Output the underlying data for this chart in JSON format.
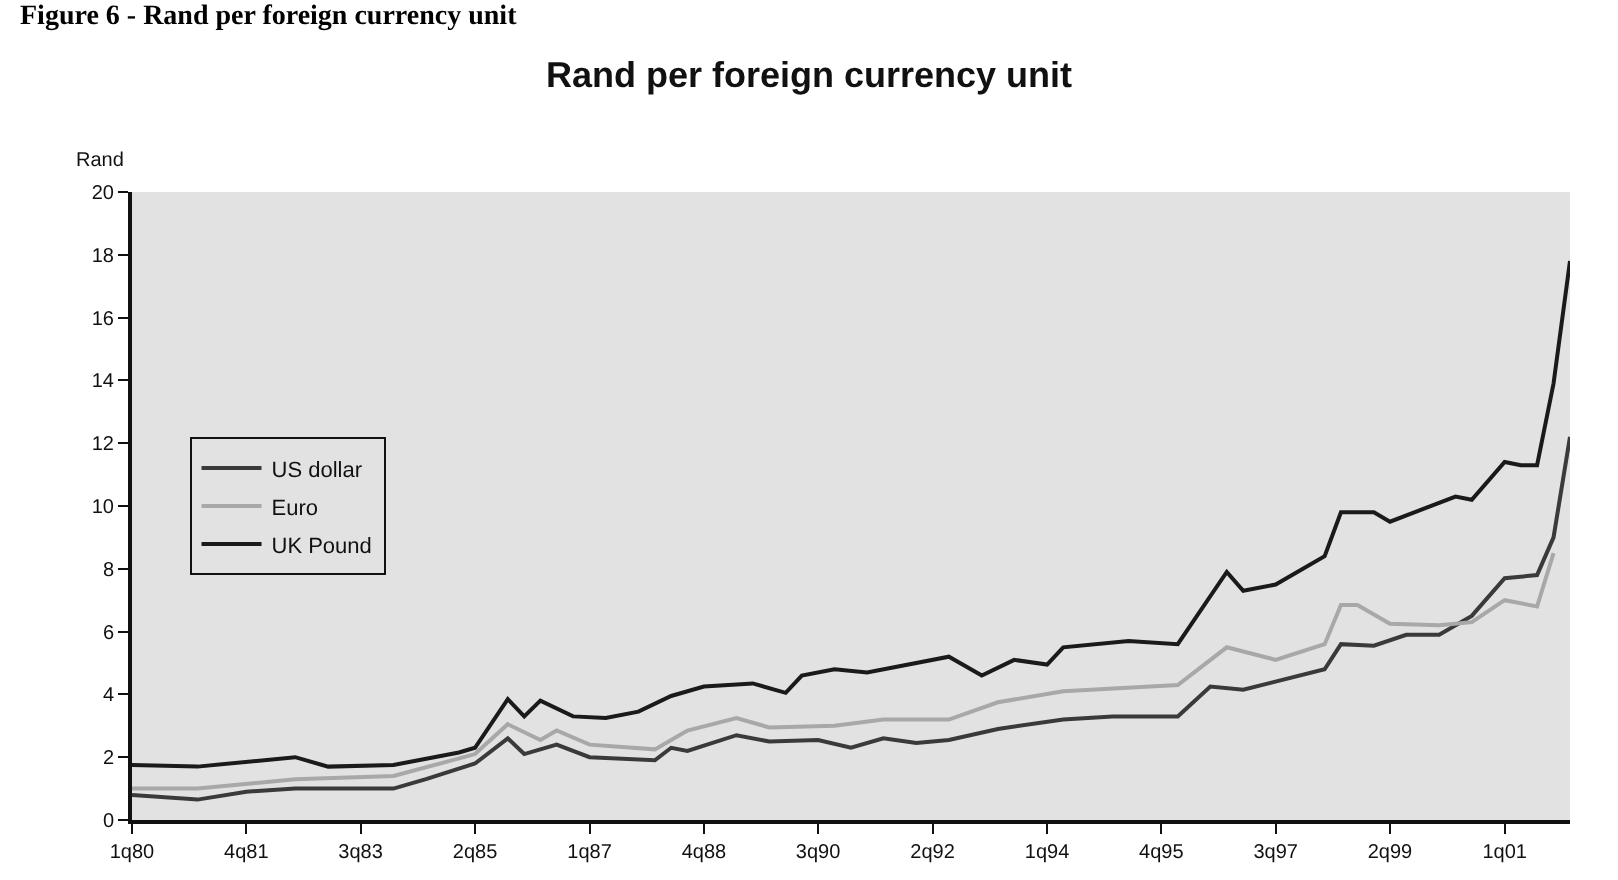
{
  "chart_data": {
    "type": "line",
    "title": "Rand per foreign currency unit",
    "ylabel": "Rand",
    "annotations": [
      "Figure 6 - Rand per foreign currency unit"
    ],
    "xlim": [
      "1980-01",
      "2002-01"
    ],
    "xticks": [
      {
        "value": "1980-01",
        "label": "1q80"
      },
      {
        "value": "1981-10",
        "label": "4q81"
      },
      {
        "value": "1983-07",
        "label": "3q83"
      },
      {
        "value": "1985-04",
        "label": "2q85"
      },
      {
        "value": "1987-01",
        "label": "1q87"
      },
      {
        "value": "1988-10",
        "label": "4q88"
      },
      {
        "value": "1990-07",
        "label": "3q90"
      },
      {
        "value": "1992-04",
        "label": "2q92"
      },
      {
        "value": "1994-01",
        "label": "1q94"
      },
      {
        "value": "1995-10",
        "label": "4q95"
      },
      {
        "value": "1997-07",
        "label": "3q97"
      },
      {
        "value": "1999-04",
        "label": "2q99"
      },
      {
        "value": "2001-01",
        "label": "1q01"
      }
    ],
    "ylim": [
      0,
      20
    ],
    "yticks": [
      0,
      2,
      4,
      6,
      8,
      10,
      12,
      14,
      16,
      18,
      20
    ],
    "grid": false,
    "legend": "left",
    "line_style": "solid",
    "marker": "none",
    "series": [
      {
        "name": "US dollar",
        "color": "#3a3a3a",
        "x": [
          "1980-01",
          "1981-01",
          "1981-10",
          "1982-07",
          "1984-01",
          "1984-07",
          "1985-04",
          "1985-10",
          "1986-01",
          "1986-07",
          "1987-01",
          "1988-01",
          "1988-04",
          "1988-07",
          "1989-04",
          "1989-10",
          "1990-07",
          "1991-01",
          "1991-07",
          "1992-01",
          "1992-07",
          "1993-04",
          "1994-04",
          "1995-01",
          "1996-01",
          "1996-07",
          "1997-01",
          "1998-04",
          "1998-07",
          "1999-01",
          "1999-07",
          "2000-01",
          "2000-07",
          "2001-01",
          "2001-07",
          "2001-10",
          "2002-01"
        ],
        "values": [
          0.8,
          0.65,
          0.9,
          1.0,
          1.0,
          1.3,
          1.8,
          2.6,
          2.1,
          2.4,
          2.0,
          1.9,
          2.3,
          2.2,
          2.7,
          2.5,
          2.55,
          2.3,
          2.6,
          2.45,
          2.55,
          2.9,
          3.2,
          3.3,
          3.3,
          4.25,
          4.15,
          4.8,
          5.6,
          5.55,
          5.9,
          5.9,
          6.5,
          7.7,
          7.8,
          9.0,
          12.2
        ]
      },
      {
        "name": "Euro",
        "color": "#a8a8a8",
        "x": [
          "1980-01",
          "1981-01",
          "1982-07",
          "1984-01",
          "1985-04",
          "1985-10",
          "1986-04",
          "1986-07",
          "1987-01",
          "1988-01",
          "1988-07",
          "1989-04",
          "1989-10",
          "1990-10",
          "1991-07",
          "1992-07",
          "1993-04",
          "1994-04",
          "1996-01",
          "1996-10",
          "1997-07",
          "1998-04",
          "1998-07",
          "1998-10",
          "1999-04",
          "2000-01",
          "2000-07",
          "2001-01",
          "2001-07",
          "2001-10"
        ],
        "values": [
          1.0,
          1.0,
          1.3,
          1.4,
          2.1,
          3.05,
          2.55,
          2.85,
          2.4,
          2.25,
          2.85,
          3.25,
          2.95,
          3.0,
          3.2,
          3.2,
          3.75,
          4.1,
          4.3,
          5.5,
          5.1,
          5.6,
          6.85,
          6.85,
          6.25,
          6.2,
          6.3,
          7.0,
          6.8,
          8.5
        ]
      },
      {
        "name": "UK Pound",
        "color": "#1a1a1a",
        "x": [
          "1980-01",
          "1981-01",
          "1982-07",
          "1983-01",
          "1984-01",
          "1985-01",
          "1985-04",
          "1985-10",
          "1986-01",
          "1986-04",
          "1986-10",
          "1987-04",
          "1987-10",
          "1988-04",
          "1988-10",
          "1989-07",
          "1990-01",
          "1990-04",
          "1990-10",
          "1991-04",
          "1992-07",
          "1993-01",
          "1993-07",
          "1994-01",
          "1994-04",
          "1995-04",
          "1996-01",
          "1996-10",
          "1997-01",
          "1997-07",
          "1998-04",
          "1998-07",
          "1999-01",
          "1999-04",
          "1999-10",
          "2000-04",
          "2000-07",
          "2001-01",
          "2001-04",
          "2001-07",
          "2001-10",
          "2002-01"
        ],
        "values": [
          1.75,
          1.7,
          2.0,
          1.7,
          1.75,
          2.15,
          2.3,
          3.85,
          3.3,
          3.8,
          3.3,
          3.25,
          3.45,
          3.95,
          4.25,
          4.35,
          4.05,
          4.6,
          4.8,
          4.7,
          5.2,
          4.6,
          5.1,
          4.95,
          5.5,
          5.7,
          5.6,
          7.9,
          7.3,
          7.5,
          8.4,
          9.8,
          9.8,
          9.5,
          9.9,
          10.3,
          10.2,
          11.4,
          11.3,
          11.3,
          13.9,
          17.8
        ]
      }
    ]
  }
}
